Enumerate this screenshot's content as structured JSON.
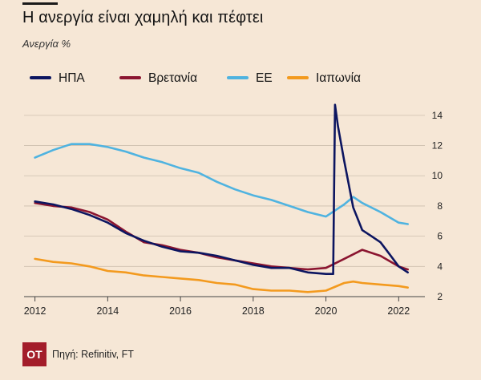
{
  "header": {
    "title": "Η ανεργία είναι χαμηλή και πέφτει",
    "subtitle": "Ανεργία %"
  },
  "legend": [
    {
      "label": "ΗΠΑ",
      "color": "#0c1560"
    },
    {
      "label": "Βρετανία",
      "color": "#8b1530"
    },
    {
      "label": "ΕΕ",
      "color": "#4fb3e0"
    },
    {
      "label": "Ιαπωνία",
      "color": "#f39a1e"
    }
  ],
  "footer": {
    "logo_text": "ΟΤ",
    "source": "Πηγή: Refinitiv, FT"
  },
  "chart_data": {
    "type": "line",
    "title": "Η ανεργία είναι χαμηλή και πέφτει",
    "ylabel": "Ανεργία %",
    "xlabel": "",
    "xlim": [
      2011.7,
      2022.5
    ],
    "ylim": [
      2,
      15
    ],
    "x_ticks": [
      2012,
      2014,
      2016,
      2018,
      2020,
      2022
    ],
    "x_tick_labels": [
      "2012",
      "2014",
      "2016",
      "2018",
      "2020",
      "2022"
    ],
    "y_ticks": [
      2,
      4,
      6,
      8,
      10,
      12,
      14
    ],
    "y_tick_labels": [
      "2",
      "4",
      "6",
      "8",
      "10",
      "12",
      "14"
    ],
    "grid": "horizontal",
    "legend_position": "top",
    "series": [
      {
        "name": "ΗΠΑ",
        "color": "#0c1560",
        "x": [
          2012.0,
          2012.5,
          2013.0,
          2013.5,
          2014.0,
          2014.5,
          2015.0,
          2015.5,
          2016.0,
          2016.5,
          2017.0,
          2017.5,
          2018.0,
          2018.5,
          2019.0,
          2019.5,
          2020.0,
          2020.2,
          2020.25,
          2020.33,
          2020.5,
          2020.75,
          2021.0,
          2021.25,
          2021.5,
          2021.75,
          2022.0,
          2022.25
        ],
        "values": [
          8.3,
          8.1,
          7.8,
          7.4,
          6.9,
          6.2,
          5.7,
          5.3,
          5.0,
          4.9,
          4.7,
          4.4,
          4.1,
          3.9,
          3.9,
          3.6,
          3.5,
          3.5,
          14.7,
          13.3,
          11.0,
          7.9,
          6.4,
          6.0,
          5.6,
          4.8,
          4.0,
          3.6
        ]
      },
      {
        "name": "Βρετανία",
        "color": "#8b1530",
        "x": [
          2012.0,
          2012.5,
          2013.0,
          2013.5,
          2014.0,
          2014.5,
          2015.0,
          2015.5,
          2016.0,
          2016.5,
          2017.0,
          2017.5,
          2018.0,
          2018.5,
          2019.0,
          2019.5,
          2020.0,
          2020.5,
          2021.0,
          2021.5,
          2022.0,
          2022.25
        ],
        "values": [
          8.2,
          8.0,
          7.9,
          7.6,
          7.1,
          6.3,
          5.6,
          5.4,
          5.1,
          4.9,
          4.6,
          4.4,
          4.2,
          4.0,
          3.9,
          3.8,
          3.9,
          4.5,
          5.1,
          4.7,
          4.0,
          3.8
        ]
      },
      {
        "name": "ΕΕ",
        "color": "#4fb3e0",
        "x": [
          2012.0,
          2012.5,
          2013.0,
          2013.5,
          2014.0,
          2014.5,
          2015.0,
          2015.5,
          2016.0,
          2016.5,
          2017.0,
          2017.5,
          2018.0,
          2018.5,
          2019.0,
          2019.5,
          2020.0,
          2020.5,
          2020.75,
          2021.0,
          2021.5,
          2022.0,
          2022.25
        ],
        "values": [
          11.2,
          11.7,
          12.1,
          12.1,
          11.9,
          11.6,
          11.2,
          10.9,
          10.5,
          10.2,
          9.6,
          9.1,
          8.7,
          8.4,
          8.0,
          7.6,
          7.3,
          8.1,
          8.6,
          8.2,
          7.6,
          6.9,
          6.8
        ]
      },
      {
        "name": "Ιαπωνία",
        "color": "#f39a1e",
        "x": [
          2012.0,
          2012.5,
          2013.0,
          2013.5,
          2014.0,
          2014.5,
          2015.0,
          2015.5,
          2016.0,
          2016.5,
          2017.0,
          2017.5,
          2018.0,
          2018.5,
          2019.0,
          2019.5,
          2020.0,
          2020.5,
          2020.75,
          2021.0,
          2021.5,
          2022.0,
          2022.25
        ],
        "values": [
          4.5,
          4.3,
          4.2,
          4.0,
          3.7,
          3.6,
          3.4,
          3.3,
          3.2,
          3.1,
          2.9,
          2.8,
          2.5,
          2.4,
          2.4,
          2.3,
          2.4,
          2.9,
          3.0,
          2.9,
          2.8,
          2.7,
          2.6
        ]
      }
    ]
  }
}
